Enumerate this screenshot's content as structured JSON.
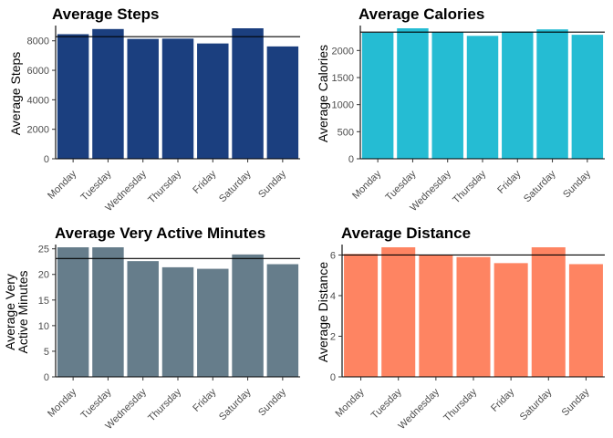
{
  "chart_data": [
    {
      "type": "bar",
      "title": "Average Steps",
      "ylabel": [
        "Average Steps"
      ],
      "xlabel": "",
      "categories": [
        "Monday",
        "Tuesday",
        "Wednesday",
        "Thursday",
        "Friday",
        "Saturday",
        "Sunday"
      ],
      "values": [
        8450,
        8800,
        8130,
        8150,
        7820,
        8850,
        7620
      ],
      "reference_line": 8280,
      "ylim": [
        0,
        8850
      ],
      "yticks": [
        0,
        2000,
        4000,
        6000,
        8000
      ],
      "color": "#1b3f7f"
    },
    {
      "type": "bar",
      "title": "Average Calories",
      "ylabel": [
        "Average Calories"
      ],
      "xlabel": "",
      "categories": [
        "Monday",
        "Tuesday",
        "Wednesday",
        "Thursday",
        "Friday",
        "Saturday",
        "Sunday"
      ],
      "values": [
        2330,
        2410,
        2340,
        2270,
        2350,
        2390,
        2290
      ],
      "reference_line": 2340,
      "ylim": [
        0,
        2410
      ],
      "yticks": [
        0,
        500,
        1000,
        1500,
        2000
      ],
      "color": "#25bcd3"
    },
    {
      "type": "bar",
      "title": "Average Very Active Minutes",
      "ylabel": [
        "Average Very",
        "Active Minutes"
      ],
      "xlabel": "",
      "categories": [
        "Monday",
        "Tuesday",
        "Wednesday",
        "Thursday",
        "Friday",
        "Saturday",
        "Sunday"
      ],
      "values": [
        25.3,
        25.3,
        22.6,
        21.4,
        21.1,
        23.9,
        22.0
      ],
      "reference_line": 23.1,
      "ylim": [
        0,
        25.3
      ],
      "yticks": [
        0,
        5,
        10,
        15,
        20,
        25
      ],
      "color": "#667d8b"
    },
    {
      "type": "bar",
      "title": "Average Distance",
      "ylabel": [
        "Average Distance"
      ],
      "xlabel": "",
      "categories": [
        "Monday",
        "Tuesday",
        "Wednesday",
        "Thursday",
        "Friday",
        "Saturday",
        "Sunday"
      ],
      "values": [
        6.05,
        6.38,
        6.0,
        5.9,
        5.6,
        6.38,
        5.55
      ],
      "reference_line": 6.0,
      "ylim": [
        0,
        6.38
      ],
      "yticks": [
        0,
        2,
        4,
        6
      ],
      "color": "#fe8462"
    }
  ]
}
